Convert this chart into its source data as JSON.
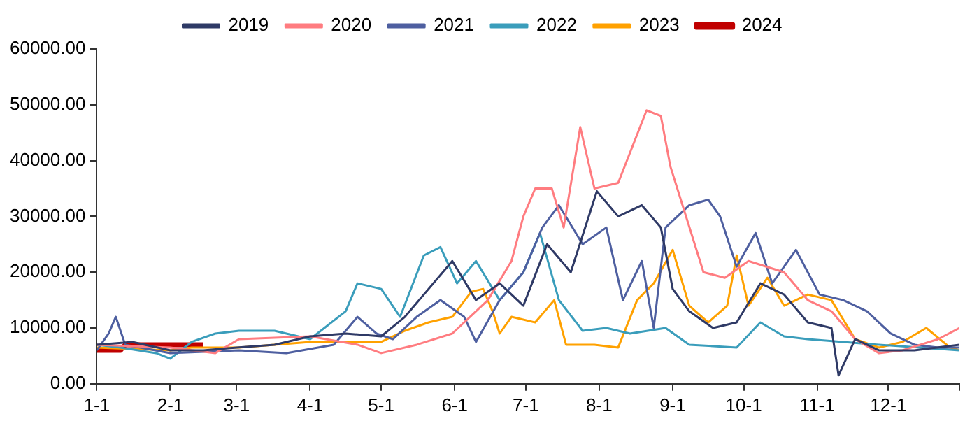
{
  "chart_data": {
    "type": "line",
    "legend": "top",
    "grid": false,
    "marker": "none",
    "line_style": "solid",
    "xlim": [
      "--01-01",
      "--12-31"
    ],
    "xticks": [
      {
        "value": "--01-01",
        "label": "1-1"
      },
      {
        "value": "--02-01",
        "label": "2-1"
      },
      {
        "value": "--03-01",
        "label": "3-1"
      },
      {
        "value": "--04-01",
        "label": "4-1"
      },
      {
        "value": "--05-01",
        "label": "5-1"
      },
      {
        "value": "--06-01",
        "label": "6-1"
      },
      {
        "value": "--07-01",
        "label": "7-1"
      },
      {
        "value": "--08-01",
        "label": "8-1"
      },
      {
        "value": "--09-01",
        "label": "9-1"
      },
      {
        "value": "--10-01",
        "label": "10-1"
      },
      {
        "value": "--11-01",
        "label": "11-1"
      },
      {
        "value": "--12-01",
        "label": "12-1"
      },
      {
        "value": "--12-31",
        "label": null
      }
    ],
    "ylim": [
      0,
      60000
    ],
    "yticks": [
      {
        "value": 0,
        "label": "0.00"
      },
      {
        "value": 10000,
        "label": "10000.00"
      },
      {
        "value": 20000,
        "label": "20000.00"
      },
      {
        "value": 30000,
        "label": "30000.00"
      },
      {
        "value": 40000,
        "label": "40000.00"
      },
      {
        "value": 50000,
        "label": "50000.00"
      },
      {
        "value": 60000,
        "label": "60000.00"
      }
    ],
    "series": [
      {
        "name": "2019",
        "color": "#2f3a66",
        "x": [
          "--01-01",
          "--01-16",
          "--02-01",
          "--02-15",
          "--03-01",
          "--03-17",
          "--04-01",
          "--04-16",
          "--05-01",
          "--05-11",
          "--05-21",
          "--05-31",
          "--06-10",
          "--06-20",
          "--06-30",
          "--07-10",
          "--07-20",
          "--07-31",
          "--08-09",
          "--08-19",
          "--08-27",
          "--09-01",
          "--09-08",
          "--09-18",
          "--09-28",
          "--10-08",
          "--10-18",
          "--10-28",
          "--11-07",
          "--11-10",
          "--11-17",
          "--11-27",
          "--12-12",
          "--12-31"
        ],
        "values": [
          7000,
          7500,
          6000,
          6000,
          6500,
          7000,
          8500,
          9000,
          8500,
          12000,
          17000,
          22000,
          15000,
          18000,
          14000,
          25000,
          20000,
          34500,
          30000,
          32000,
          28000,
          17000,
          13000,
          10000,
          11000,
          18000,
          16000,
          11000,
          10000,
          1500,
          8000,
          6000,
          6000,
          7000
        ]
      },
      {
        "name": "2020",
        "color": "#ff7c80",
        "x": [
          "--01-01",
          "--02-01",
          "--02-20",
          "--03-02",
          "--04-01",
          "--04-21",
          "--05-01",
          "--05-16",
          "--05-31",
          "--06-15",
          "--06-25",
          "--06-30",
          "--07-05",
          "--07-12",
          "--07-17",
          "--07-24",
          "--07-30",
          "--08-09",
          "--08-21",
          "--08-27",
          "--08-31",
          "--09-14",
          "--09-23",
          "--10-03",
          "--10-18",
          "--10-28",
          "--11-07",
          "--11-17",
          "--11-27",
          "--12-07",
          "--12-22",
          "--12-31"
        ],
        "values": [
          7000,
          6500,
          5500,
          8000,
          8500,
          7000,
          5500,
          7000,
          9000,
          15000,
          22000,
          30000,
          35000,
          35000,
          28000,
          46000,
          35000,
          36000,
          49000,
          48000,
          39000,
          20000,
          19000,
          22000,
          20000,
          15000,
          13000,
          8000,
          5500,
          6000,
          8000,
          10000
        ]
      },
      {
        "name": "2021",
        "color": "#4e5fa0",
        "x": [
          "--01-01",
          "--01-06",
          "--01-09",
          "--01-13",
          "--02-01",
          "--03-02",
          "--03-22",
          "--04-11",
          "--04-21",
          "--04-29",
          "--05-06",
          "--05-16",
          "--05-26",
          "--06-05",
          "--06-10",
          "--06-20",
          "--06-30",
          "--07-08",
          "--07-15",
          "--07-25",
          "--08-04",
          "--08-11",
          "--08-19",
          "--08-24",
          "--08-29",
          "--09-08",
          "--09-16",
          "--09-21",
          "--09-28",
          "--10-06",
          "--10-13",
          "--10-23",
          "--11-02",
          "--11-12",
          "--11-22",
          "--12-02",
          "--12-12",
          "--12-22",
          "--12-31"
        ],
        "values": [
          6000,
          9000,
          12000,
          7000,
          5500,
          6000,
          5500,
          7000,
          12000,
          9000,
          8000,
          12000,
          15000,
          12000,
          7500,
          15000,
          20000,
          28000,
          32000,
          25000,
          28000,
          15000,
          22000,
          10000,
          28000,
          32000,
          33000,
          30000,
          21000,
          27000,
          18000,
          24000,
          16000,
          15000,
          13000,
          9000,
          7000,
          6500,
          6500
        ]
      },
      {
        "name": "2022",
        "color": "#3a9dbb",
        "x": [
          "--01-01",
          "--01-11",
          "--01-26",
          "--02-01",
          "--02-10",
          "--02-20",
          "--03-02",
          "--03-17",
          "--04-01",
          "--04-16",
          "--04-21",
          "--05-01",
          "--05-09",
          "--05-19",
          "--05-26",
          "--06-02",
          "--06-10",
          "--06-20",
          "--06-30",
          "--07-07",
          "--07-15",
          "--07-25",
          "--08-04",
          "--08-14",
          "--08-29",
          "--09-08",
          "--09-28",
          "--10-08",
          "--10-18",
          "--10-28",
          "--11-27",
          "--12-31"
        ],
        "values": [
          7000,
          6500,
          5500,
          4500,
          7500,
          9000,
          9500,
          9500,
          8000,
          13000,
          18000,
          17000,
          12000,
          23000,
          24500,
          18000,
          22000,
          15000,
          20000,
          27000,
          15000,
          9500,
          10000,
          9000,
          10000,
          7000,
          6500,
          11000,
          8500,
          8000,
          7000,
          6000
        ]
      },
      {
        "name": "2023",
        "color": "#ffa100",
        "x": [
          "--01-01",
          "--02-01",
          "--02-10",
          "--03-02",
          "--04-01",
          "--05-01",
          "--05-11",
          "--05-21",
          "--05-31",
          "--06-08",
          "--06-13",
          "--06-17",
          "--06-20",
          "--06-25",
          "--07-05",
          "--07-13",
          "--07-18",
          "--07-30",
          "--08-09",
          "--08-17",
          "--08-24",
          "--09-01",
          "--09-08",
          "--09-16",
          "--09-24",
          "--09-28",
          "--10-03",
          "--10-11",
          "--10-18",
          "--10-28",
          "--11-07",
          "--11-17",
          "--11-27",
          "--12-07",
          "--12-17",
          "--12-27",
          "--12-31"
        ],
        "values": [
          6500,
          6000,
          6500,
          6500,
          7500,
          7500,
          9500,
          11000,
          12000,
          16500,
          17000,
          13000,
          9000,
          12000,
          11000,
          15000,
          7000,
          7000,
          6500,
          15000,
          18000,
          24000,
          14000,
          11000,
          14000,
          23000,
          14000,
          19000,
          14000,
          16000,
          15000,
          8000,
          6500,
          7500,
          10000,
          6500,
          6000
        ]
      },
      {
        "name": "2024",
        "color": "#c00000",
        "x": [
          "--01-01",
          "--01-11",
          "--01-13",
          "--02-15"
        ],
        "values": [
          6000,
          6000,
          7000,
          7000
        ]
      }
    ]
  }
}
